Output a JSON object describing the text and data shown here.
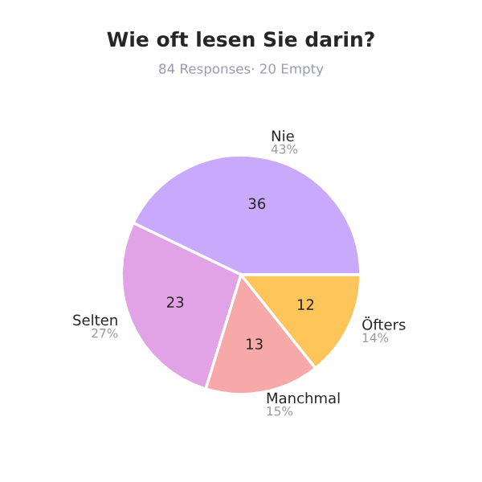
{
  "chart_data": {
    "type": "pie",
    "title": "Wie oft lesen Sie darin?",
    "subtitle": "84 Responses· 20 Empty",
    "categories": [
      "Nie",
      "Selten",
      "Manchmal",
      "Öfters"
    ],
    "values": [
      36,
      23,
      13,
      12
    ],
    "colors": [
      "#c9a9fb",
      "#e2a3e6",
      "#f7a8a8",
      "#fec55a"
    ],
    "value_labels": [
      "36",
      "23",
      "13",
      "12"
    ],
    "annotations": [
      {
        "text": "43%",
        "x": "Nie"
      },
      {
        "text": "27%",
        "x": "Selten"
      },
      {
        "text": "15%",
        "x": "Manchmal"
      },
      {
        "text": "14%",
        "x": "Öfters"
      }
    ]
  }
}
